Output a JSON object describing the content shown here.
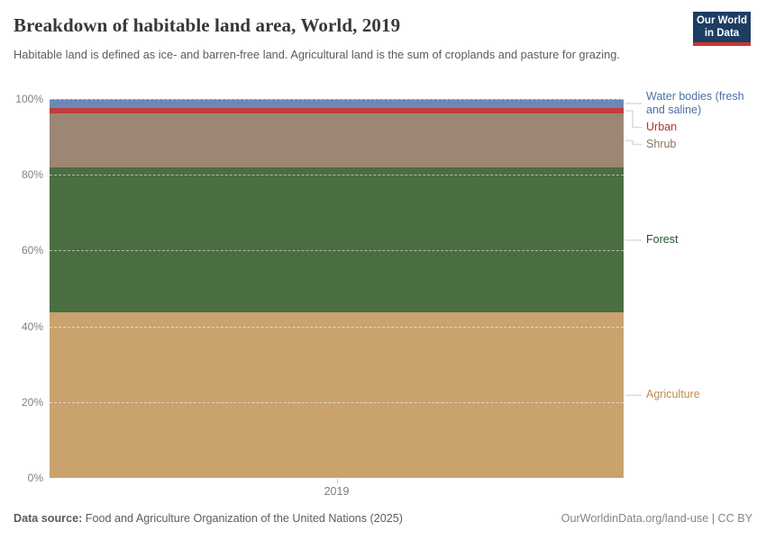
{
  "header": {
    "title": "Breakdown of habitable land area, World, 2019",
    "subtitle": "Habitable land is defined as ice- and barren-free land. Agricultural land is the sum of croplands and pasture for grazing."
  },
  "logo": {
    "line1": "Our World",
    "line2": "in Data",
    "bg_color": "#1d3d63",
    "accent_color": "#d0342c"
  },
  "chart_data": {
    "type": "bar",
    "stacked": true,
    "title": "Breakdown of habitable land area, World, 2019",
    "categories": [
      "2019"
    ],
    "series": [
      {
        "name": "Agriculture",
        "value": 43.6,
        "color": "#c9a26e",
        "label_color": "#bd8d4c"
      },
      {
        "name": "Forest",
        "value": 38.3,
        "color": "#4a6e41",
        "label_color": "#23522b"
      },
      {
        "name": "Shrub",
        "value": 14.3,
        "color": "#9b8773",
        "label_color": "#8a7460"
      },
      {
        "name": "Urban",
        "value": 1.4,
        "color": "#c23d3c",
        "label_color": "#b5332c"
      },
      {
        "name": "Water bodies (fresh and saline)",
        "value": 2.4,
        "color": "#6d88b7",
        "label_color": "#4d6fa8"
      }
    ],
    "xlabel": "",
    "ylabel": "",
    "ylim": [
      0,
      100
    ],
    "yticks": [
      "0%",
      "20%",
      "40%",
      "60%",
      "80%",
      "100%"
    ],
    "grid": "dashed horizontal",
    "legend_position": "right"
  },
  "footer": {
    "datasource_label": "Data source:",
    "datasource_text": " Food and Agriculture Organization of the United Nations (2025)",
    "attribution": "OurWorldinData.org/land-use | CC BY"
  }
}
